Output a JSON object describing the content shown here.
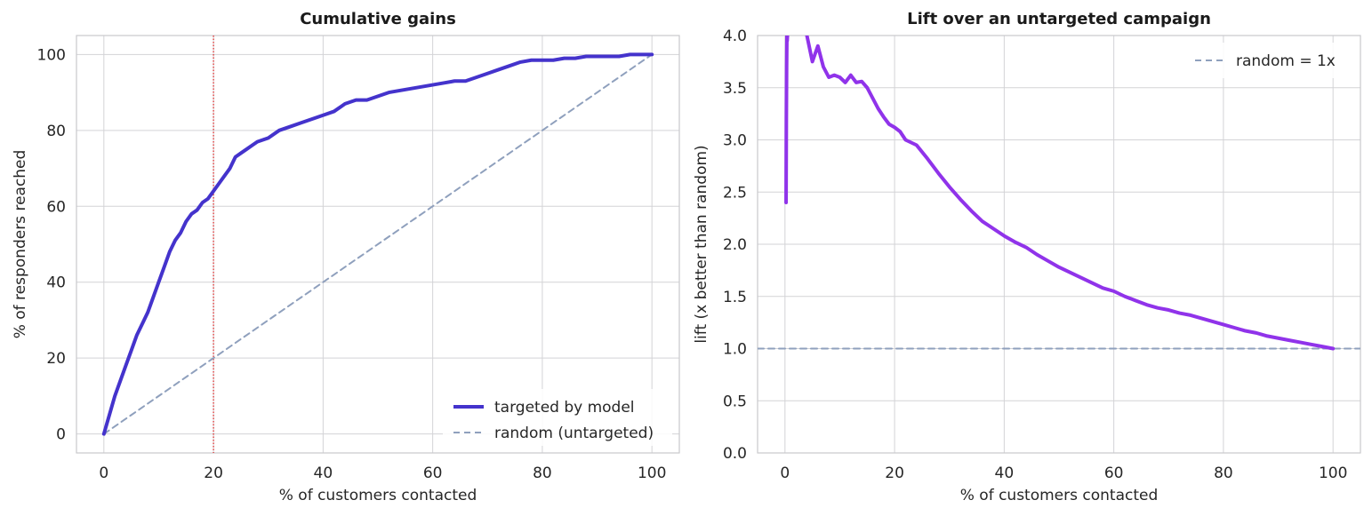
{
  "chart_data": [
    {
      "type": "line",
      "title": "Cumulative gains",
      "xlabel": "% of customers contacted",
      "ylabel": "% of responders reached",
      "xlim": [
        -5,
        105
      ],
      "ylim": [
        -5,
        105
      ],
      "xticks": [
        0,
        20,
        40,
        60,
        80,
        100
      ],
      "yticks": [
        0,
        20,
        40,
        60,
        80,
        100
      ],
      "grid": true,
      "legend_position": "lower-right",
      "vline": {
        "x": 20,
        "color": "#e03030",
        "style": "dotted"
      },
      "series": [
        {
          "name": "targeted by model",
          "color": "#4433cc",
          "style": "solid",
          "x": [
            0,
            1,
            2,
            3,
            4,
            5,
            6,
            7,
            8,
            9,
            10,
            11,
            12,
            13,
            14,
            15,
            16,
            17,
            18,
            19,
            20,
            21,
            22,
            23,
            24,
            25,
            26,
            27,
            28,
            30,
            32,
            34,
            36,
            38,
            40,
            42,
            44,
            46,
            48,
            50,
            52,
            54,
            56,
            58,
            60,
            62,
            64,
            66,
            68,
            70,
            72,
            74,
            76,
            78,
            80,
            82,
            84,
            86,
            88,
            90,
            92,
            94,
            96,
            98,
            100
          ],
          "y": [
            0,
            5,
            10,
            14,
            18,
            22,
            26,
            29,
            32,
            36,
            40,
            44,
            48,
            51,
            53,
            56,
            58,
            59,
            61,
            62,
            64,
            66,
            68,
            70,
            73,
            74,
            75,
            76,
            77,
            78,
            80,
            81,
            82,
            83,
            84,
            85,
            87,
            88,
            88,
            89,
            90,
            90.5,
            91,
            91.5,
            92,
            92.5,
            93,
            93,
            94,
            95,
            96,
            97,
            98,
            98.5,
            98.5,
            98.5,
            99,
            99,
            99.5,
            99.5,
            99.5,
            99.5,
            100,
            100,
            100
          ]
        },
        {
          "name": "random (untargeted)",
          "color": "#8fa0bd",
          "style": "dashed",
          "x": [
            0,
            100
          ],
          "y": [
            0,
            100
          ]
        }
      ]
    },
    {
      "type": "line",
      "title": "Lift over an untargeted campaign",
      "xlabel": "% of customers contacted",
      "ylabel": "lift (x better than random)",
      "xlim": [
        -5,
        105
      ],
      "ylim": [
        0.0,
        4.0
      ],
      "xticks": [
        0,
        20,
        40,
        60,
        80,
        100
      ],
      "yticks": [
        "0.0",
        "0.5",
        "1.0",
        "1.5",
        "2.0",
        "2.5",
        "3.0",
        "3.5",
        "4.0"
      ],
      "grid": true,
      "legend_position": "upper-right",
      "series": [
        {
          "name": "",
          "color": "#9033ea",
          "style": "solid",
          "x": [
            0.2,
            0.25,
            0.3,
            0.35,
            0.4,
            0.5,
            1,
            1.5,
            2,
            3,
            4,
            5,
            6,
            7,
            8,
            9,
            10,
            11,
            12,
            13,
            14,
            15,
            16,
            17,
            18,
            19,
            20,
            21,
            22,
            24,
            26,
            28,
            30,
            32,
            34,
            36,
            38,
            40,
            42,
            44,
            46,
            48,
            50,
            52,
            54,
            56,
            58,
            60,
            62,
            64,
            66,
            68,
            70,
            72,
            74,
            76,
            78,
            80,
            82,
            84,
            86,
            88,
            90,
            92,
            94,
            96,
            98,
            100
          ],
          "y": [
            2.4,
            3.2,
            3.7,
            4.0,
            3.95,
            4.05,
            4.3,
            4.1,
            4.3,
            4.2,
            4.0,
            3.75,
            3.9,
            3.7,
            3.6,
            3.62,
            3.6,
            3.55,
            3.62,
            3.55,
            3.56,
            3.5,
            3.4,
            3.3,
            3.22,
            3.15,
            3.12,
            3.08,
            3.0,
            2.95,
            2.82,
            2.68,
            2.55,
            2.43,
            2.32,
            2.22,
            2.15,
            2.08,
            2.02,
            1.97,
            1.9,
            1.84,
            1.78,
            1.73,
            1.68,
            1.63,
            1.58,
            1.55,
            1.5,
            1.46,
            1.42,
            1.39,
            1.37,
            1.34,
            1.32,
            1.29,
            1.26,
            1.23,
            1.2,
            1.17,
            1.15,
            1.12,
            1.1,
            1.08,
            1.06,
            1.04,
            1.02,
            1.0
          ]
        },
        {
          "name": "random = 1x",
          "color": "#8fa0bd",
          "style": "dashed",
          "x": [
            -5,
            105
          ],
          "y": [
            1.0,
            1.0
          ]
        }
      ]
    }
  ]
}
